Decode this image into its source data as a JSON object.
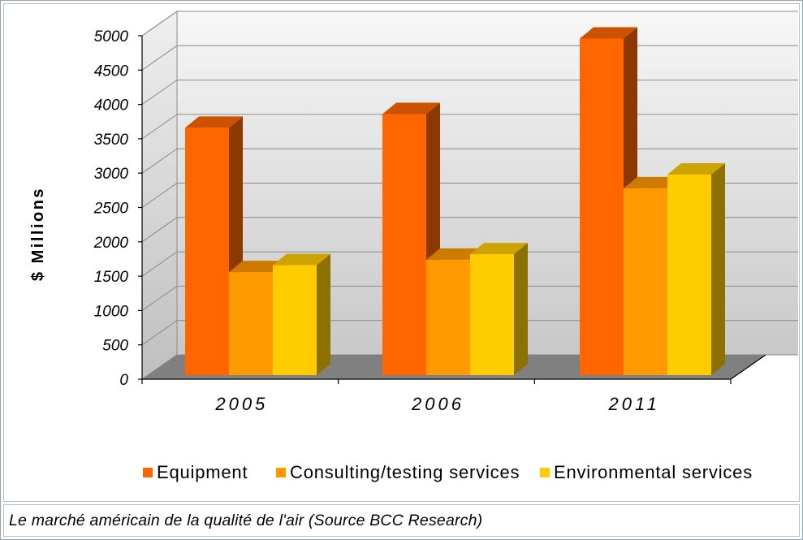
{
  "caption": "Le marché américain de la qualité de l'air (Source BCC Research)",
  "chart_data": {
    "type": "bar",
    "three_d": true,
    "ylabel": "$ Millions",
    "categories": [
      "2005",
      "2006",
      "2011"
    ],
    "series": [
      {
        "name": "Equipment",
        "color": "#FF6600",
        "values": [
          3600,
          3800,
          4900
        ]
      },
      {
        "name": "Consulting/testing services",
        "color": "#FF9900",
        "values": [
          1500,
          1680,
          2720
        ]
      },
      {
        "name": "Environmental services",
        "color": "#FFCC00",
        "values": [
          1600,
          1760,
          2920
        ]
      }
    ],
    "ylim": [
      0,
      5000
    ],
    "yticks": [
      "0",
      "500",
      "1000",
      "1500",
      "2000",
      "2500",
      "3000",
      "3500",
      "4000",
      "4500",
      "5000"
    ],
    "grid": true,
    "legend": "bottom"
  }
}
